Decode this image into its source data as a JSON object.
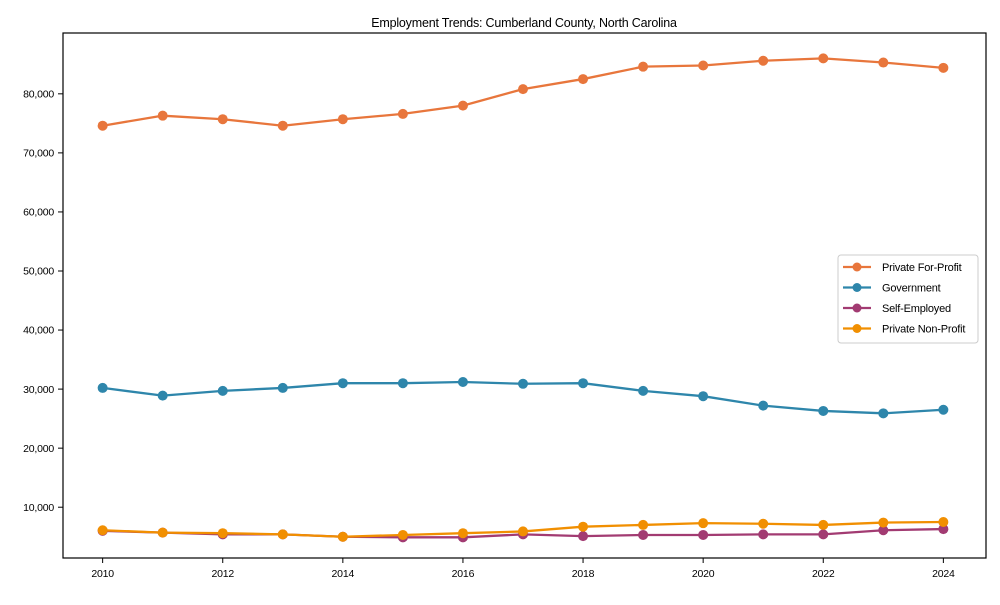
{
  "chart_data": {
    "type": "line",
    "title": "Employment Trends: Cumberland County, North Carolina",
    "xlabel": "",
    "ylabel": "",
    "x": [
      2010,
      2011,
      2012,
      2013,
      2014,
      2015,
      2016,
      2017,
      2018,
      2019,
      2020,
      2021,
      2022,
      2023,
      2024
    ],
    "series": [
      {
        "name": "Private For-Profit",
        "color": "#E8763C",
        "values": [
          74600,
          76300,
          75700,
          74600,
          75700,
          76600,
          78000,
          80800,
          82500,
          84600,
          84800,
          85600,
          86000,
          85300,
          84400
        ]
      },
      {
        "name": "Government",
        "color": "#2E86AB",
        "values": [
          30200,
          28900,
          29700,
          30200,
          31000,
          31000,
          31200,
          30900,
          31000,
          29700,
          28800,
          27200,
          26300,
          25900,
          26500
        ]
      },
      {
        "name": "Self-Employed",
        "color": "#A23B72",
        "values": [
          6000,
          5700,
          5400,
          5400,
          5000,
          4900,
          4900,
          5400,
          5100,
          5300,
          5300,
          5400,
          5400,
          6100,
          6300
        ]
      },
      {
        "name": "Private Non-Profit",
        "color": "#F18F01",
        "values": [
          6100,
          5700,
          5600,
          5400,
          5000,
          5300,
          5600,
          5900,
          6700,
          7000,
          7300,
          7200,
          7000,
          7400,
          7500
        ]
      }
    ],
    "xticks": {
      "values": [
        2010,
        2012,
        2014,
        2016,
        2018,
        2020,
        2022,
        2024
      ],
      "labels": [
        "2010",
        "2012",
        "2014",
        "2016",
        "2018",
        "2020",
        "2022",
        "2024"
      ]
    },
    "yticks": {
      "values": [
        10000,
        20000,
        30000,
        40000,
        50000,
        60000,
        70000,
        80000
      ],
      "labels": [
        "10,000",
        "20,000",
        "30,000",
        "40,000",
        "50,000",
        "60,000",
        "70,000",
        "80,000"
      ]
    },
    "xlim": [
      2009.34,
      2024.71
    ],
    "ylim": [
      1400,
      90300
    ],
    "grid": false,
    "marker": "circle",
    "legend": {
      "position": "middle-right",
      "border_color": "#cccccc",
      "background_color": "#ffffff"
    },
    "axis_color": "#000000"
  }
}
